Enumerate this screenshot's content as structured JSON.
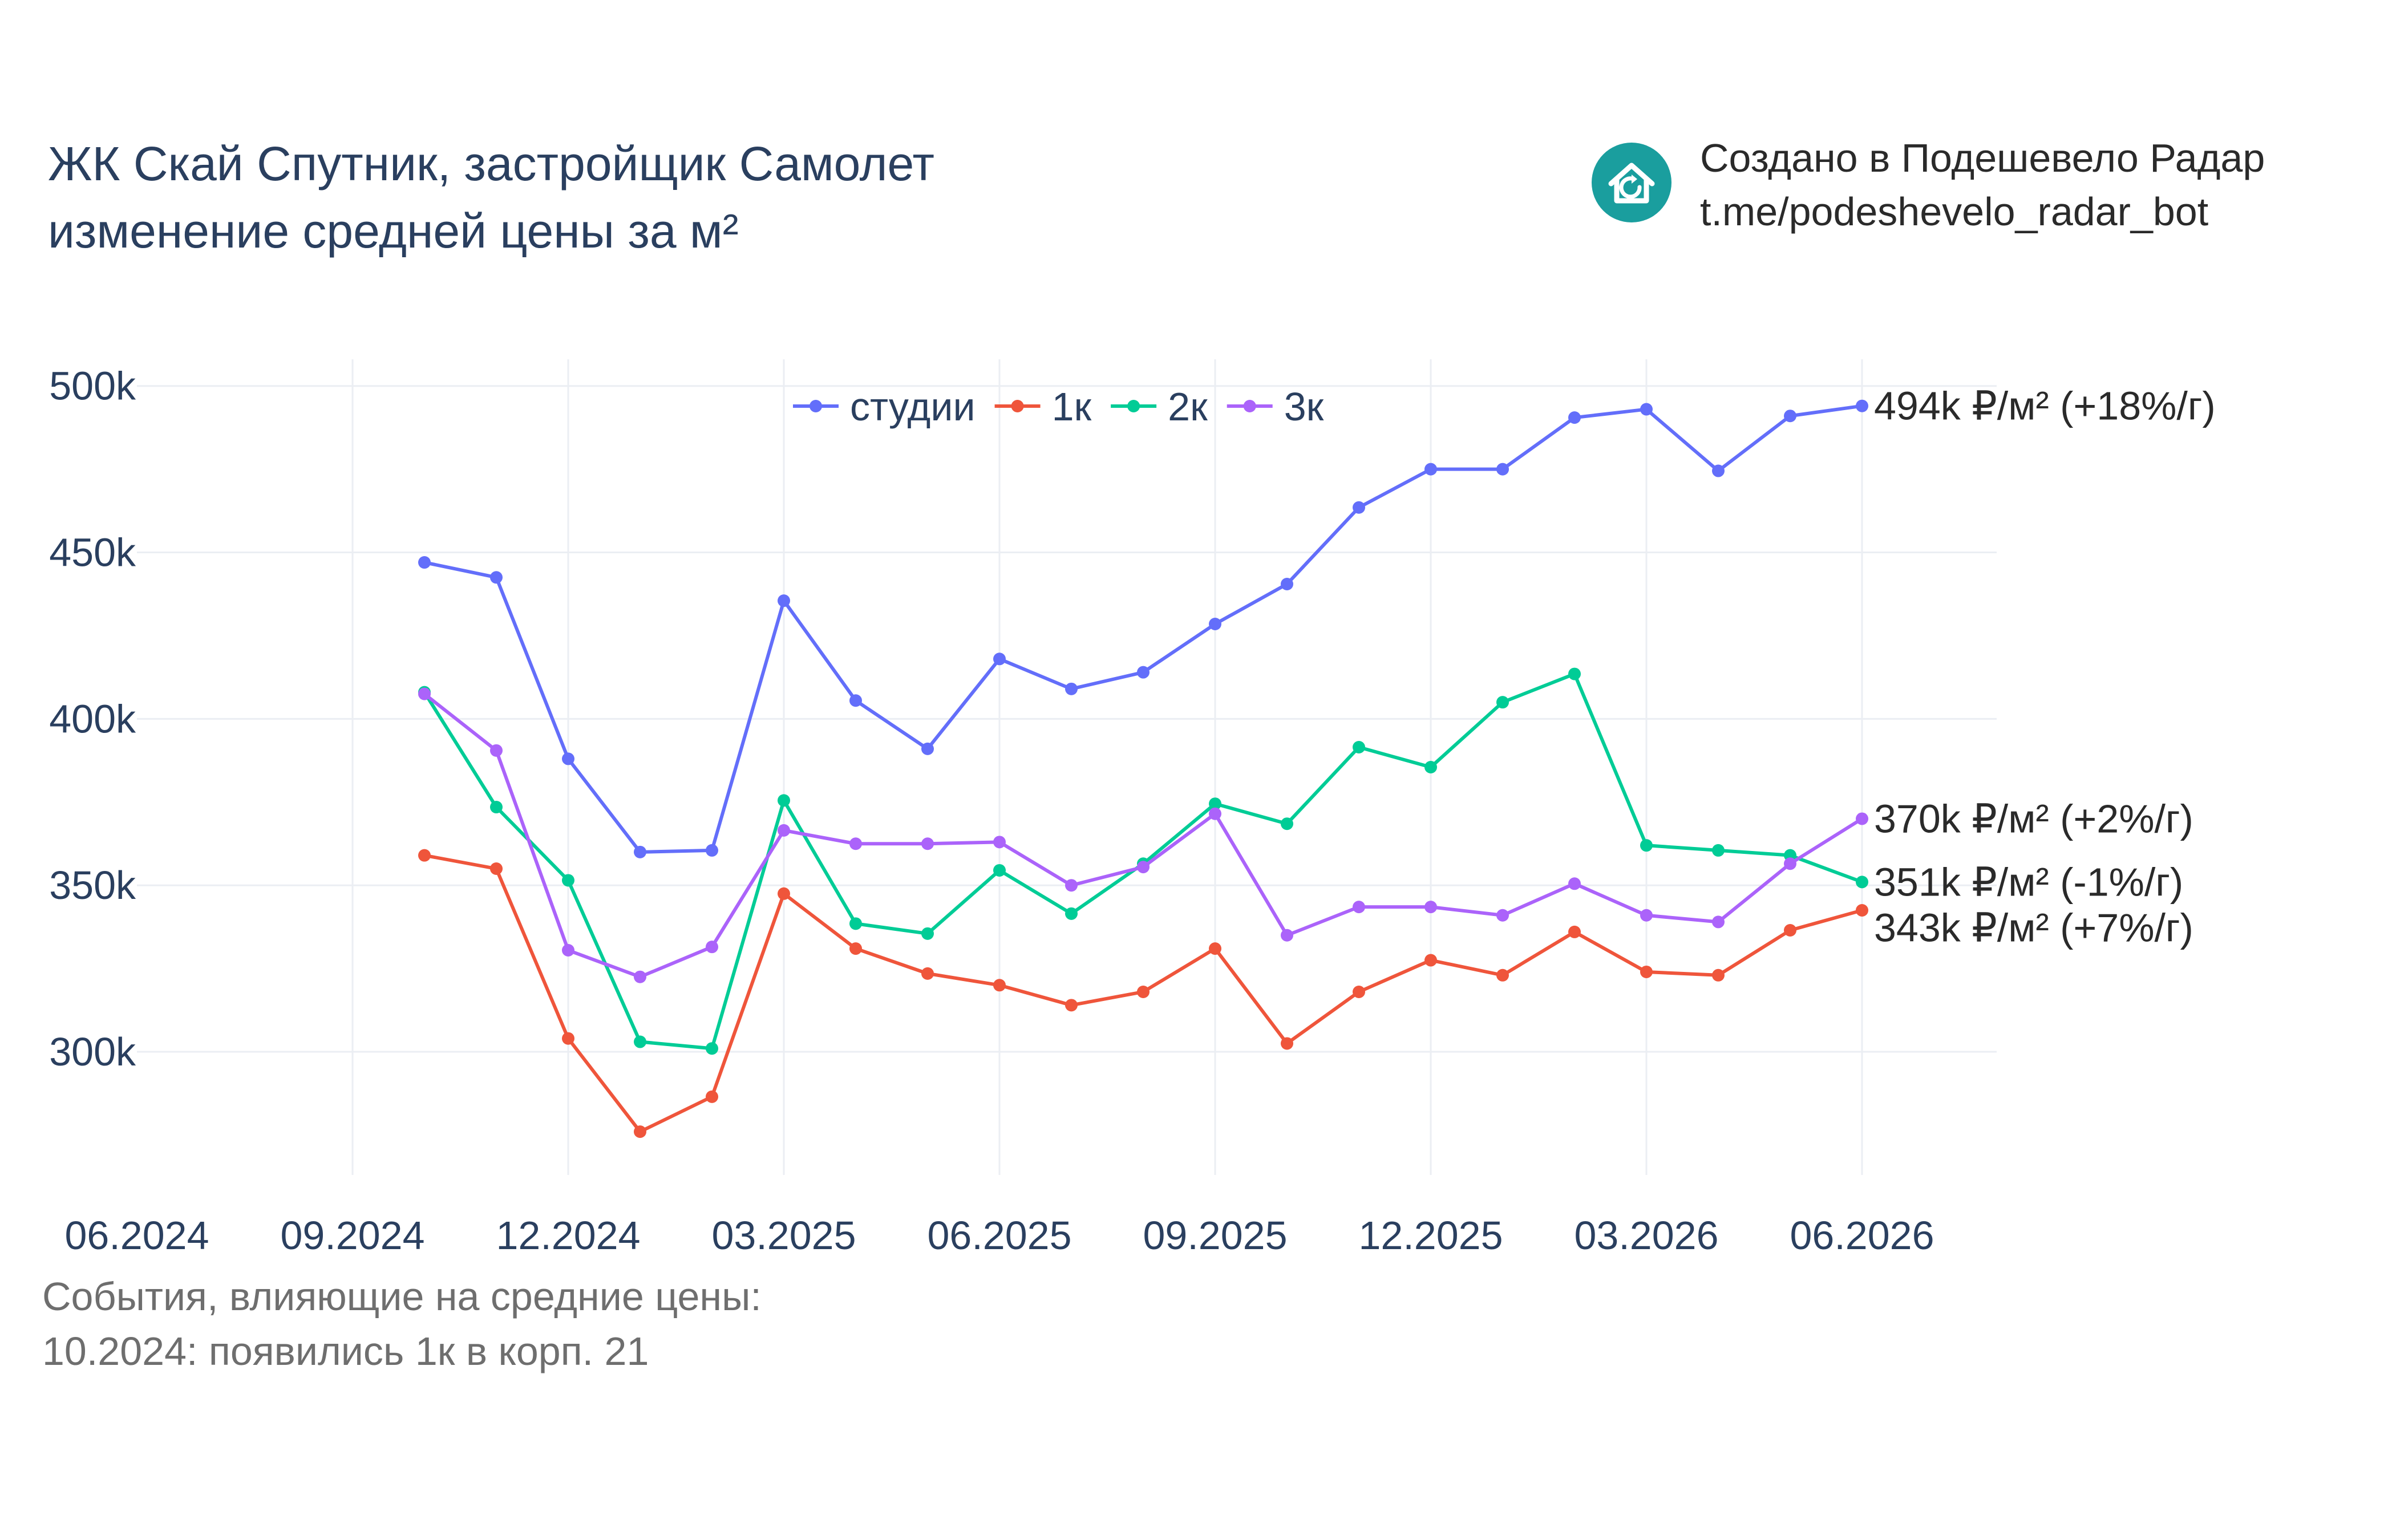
{
  "title": {
    "line1": "ЖК Скай Спутник, застройщик Самолет",
    "line2": "изменение средней цены за м²"
  },
  "brand": {
    "icon": "house-refresh-icon",
    "line1": "Создано в Подешевело Радар",
    "line2": "t.me/podeshevelo_radar_bot",
    "color": "#1a9e9e"
  },
  "events": {
    "heading": "События, влияющие на средние цены:",
    "items": [
      "10.2024: появились 1к в корп. 21"
    ]
  },
  "chart_data": {
    "type": "line",
    "x": [
      "10.2024",
      "11.2024",
      "12.2024",
      "01.2025",
      "02.2025",
      "03.2025",
      "04.2025",
      "05.2025",
      "06.2025",
      "07.2025",
      "08.2025",
      "09.2025",
      "10.2025",
      "11.2025",
      "12.2025",
      "01.2026",
      "02.2026",
      "03.2026",
      "04.2026",
      "05.2026",
      "06.2026"
    ],
    "x_ticks": [
      "06.2024",
      "09.2024",
      "12.2024",
      "03.2025",
      "06.2025",
      "09.2025",
      "12.2025",
      "03.2026",
      "06.2026"
    ],
    "y_ticks": [
      300000,
      350000,
      400000,
      450000,
      500000
    ],
    "y_tick_labels": [
      "300k",
      "350k",
      "400k",
      "450k",
      "500k"
    ],
    "ylim": [
      263000,
      508000
    ],
    "grid": true,
    "legend_position": "top-center",
    "series": [
      {
        "name": "студии",
        "color": "#636efa",
        "end_label": "494k ₽/м² (+18%/г)",
        "values": [
          447000,
          442500,
          388000,
          360000,
          360500,
          435500,
          405500,
          391000,
          418000,
          409000,
          414000,
          428500,
          440500,
          463500,
          475000,
          475000,
          490500,
          493000,
          474500,
          491000,
          494000
        ]
      },
      {
        "name": "1к",
        "color": "#ef553b",
        "end_label": "343k ₽/м² (+7%/г)",
        "values": [
          359000,
          355000,
          304000,
          276000,
          286500,
          347500,
          331000,
          323500,
          320000,
          314000,
          318000,
          331000,
          302500,
          318000,
          327500,
          323000,
          336000,
          324000,
          323000,
          336500,
          342500
        ]
      },
      {
        "name": "2к",
        "color": "#00cc96",
        "end_label": "351k ₽/м² (-1%/г)",
        "values": [
          408000,
          373500,
          351500,
          303000,
          301000,
          375500,
          338500,
          335500,
          354500,
          341500,
          356500,
          374500,
          368500,
          391500,
          385500,
          405000,
          413500,
          362000,
          360500,
          359000,
          351000
        ]
      },
      {
        "name": "3к",
        "color": "#ab63fa",
        "end_label": "370k ₽/м² (+2%/г)",
        "values": [
          407500,
          390500,
          330500,
          322500,
          331500,
          366500,
          362500,
          362500,
          363000,
          350000,
          355500,
          371500,
          335000,
          343500,
          343500,
          341000,
          350500,
          341000,
          339000,
          356500,
          370000
        ]
      }
    ]
  }
}
